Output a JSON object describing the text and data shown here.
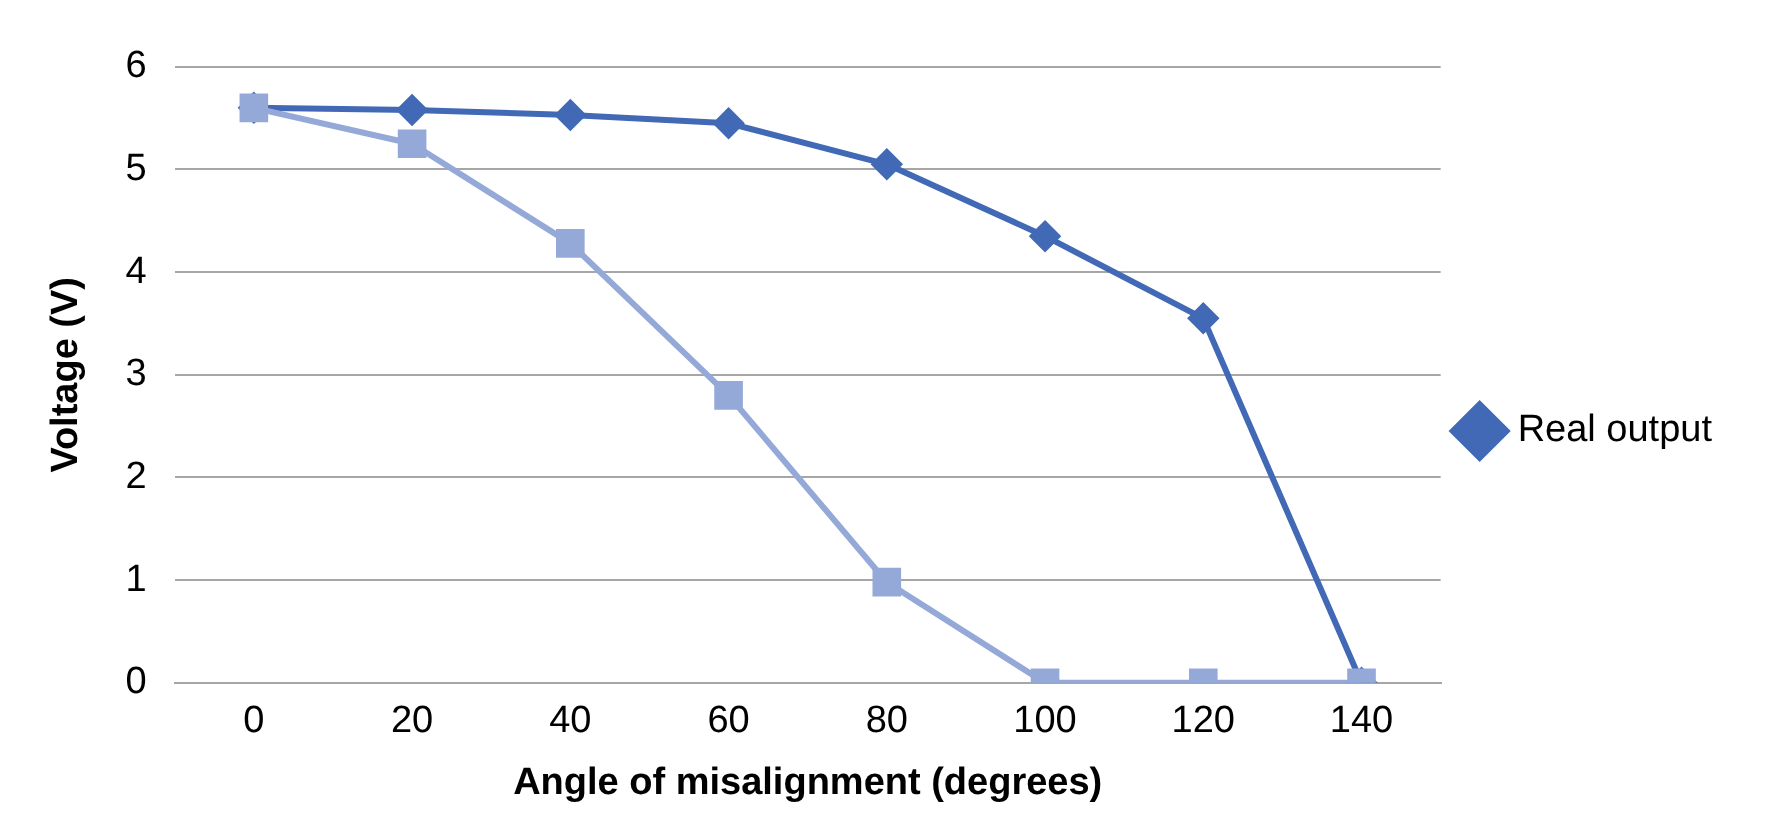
{
  "chart_data": {
    "type": "line",
    "xlabel": "Angle of misalignment (degrees)",
    "ylabel": "Voltage (V)",
    "categories": [
      "0",
      "20",
      "40",
      "60",
      "80",
      "100",
      "120",
      "140"
    ],
    "series": [
      {
        "name": "Real output",
        "color": "#4169b5",
        "marker": "diamond",
        "values": [
          5.6,
          5.58,
          5.53,
          5.45,
          5.05,
          4.35,
          3.55,
          0
        ]
      },
      {
        "color": "#95a9d8",
        "marker": "square",
        "values": [
          5.6,
          5.25,
          4.28,
          2.8,
          0.98,
          0,
          0,
          0
        ]
      }
    ],
    "ylim": [
      0,
      6
    ],
    "yticks": [
      0,
      1,
      2,
      3,
      4,
      5,
      6
    ],
    "grid": "y",
    "legend": "right"
  }
}
